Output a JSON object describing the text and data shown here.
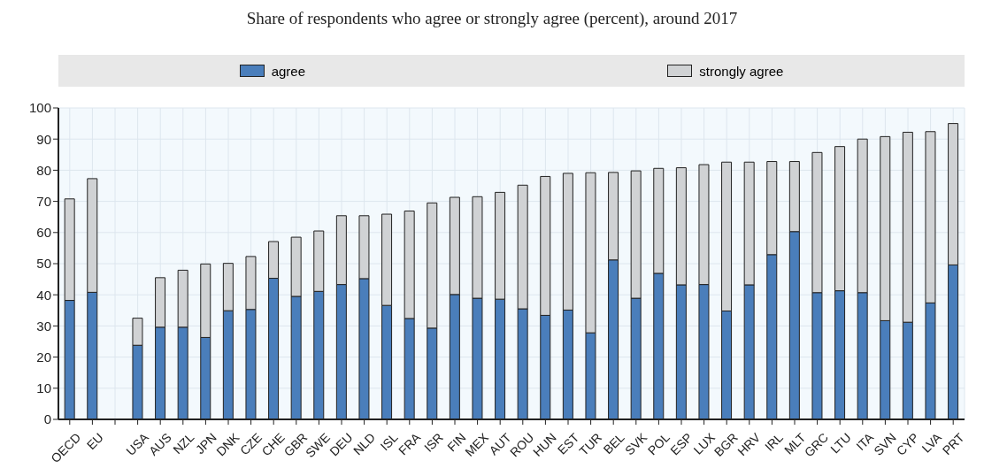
{
  "chart_data": {
    "type": "bar",
    "title": "Share of respondents who agree or strongly agree (percent), around 2017",
    "stacked": true,
    "legend": "top",
    "grid": true,
    "categories": [
      "OECD",
      "EU",
      null,
      "USA",
      "AUS",
      "NZL",
      "JPN",
      "DNK",
      "CZE",
      "CHE",
      "GBR",
      "SWE",
      "DEU",
      "NLD",
      "ISL",
      "FRA",
      "ISR",
      "FIN",
      "MEX",
      "AUT",
      "ROU",
      "HUN",
      "EST",
      "TUR",
      "BEL",
      "SVK",
      "POL",
      "ESP",
      "LUX",
      "BGR",
      "HRV",
      "IRL",
      "MLT",
      "GRC",
      "LTU",
      "ITA",
      "SVN",
      "CYP",
      "LVA",
      "PRT"
    ],
    "series": [
      {
        "name": "agree",
        "color": "#4a7ebb",
        "values": [
          38.2,
          40.8,
          null,
          23.8,
          29.6,
          29.6,
          26.3,
          34.9,
          35.3,
          45.3,
          39.5,
          41.1,
          43.3,
          45.2,
          36.6,
          32.4,
          29.3,
          40.1,
          38.9,
          38.6,
          35.5,
          33.4,
          35.1,
          27.8,
          51.2,
          38.9,
          46.9,
          43.2,
          43.3,
          34.8,
          43.2,
          52.9,
          60.3,
          40.7,
          41.3,
          40.7,
          31.7,
          31.2,
          37.4,
          49.6
        ]
      },
      {
        "name": "strongly agree",
        "color": "#d0d2d4",
        "values": [
          32.6,
          36.5,
          null,
          8.7,
          15.9,
          18.3,
          23.6,
          15.2,
          17.0,
          11.8,
          19.0,
          19.4,
          22.1,
          20.2,
          29.3,
          34.5,
          40.2,
          31.2,
          32.6,
          34.3,
          39.7,
          44.6,
          43.9,
          51.4,
          28.1,
          40.9,
          33.7,
          37.6,
          38.5,
          47.8,
          39.4,
          29.9,
          22.5,
          45.0,
          46.3,
          49.3,
          59.1,
          61.0,
          55.0,
          45.4
        ]
      }
    ],
    "ylim": [
      0,
      100
    ],
    "yticks": [
      0,
      10,
      20,
      30,
      40,
      50,
      60,
      70,
      80,
      90,
      100
    ]
  }
}
